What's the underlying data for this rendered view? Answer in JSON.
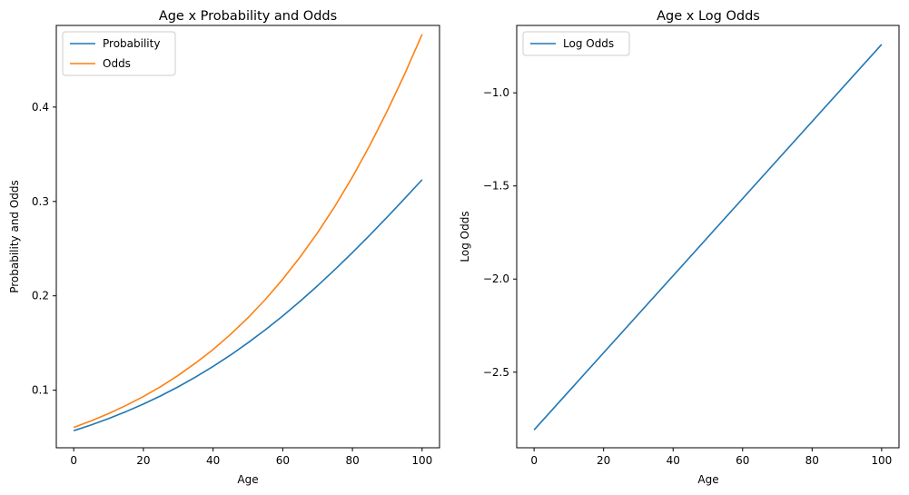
{
  "chart_data": [
    {
      "type": "line",
      "title": "Age x Probability and Odds",
      "xlabel": "Age",
      "ylabel": "Probability and Odds",
      "xlim": [
        -5,
        105
      ],
      "ylim": [
        0.039,
        0.4865
      ],
      "xticks": [
        0,
        20,
        40,
        60,
        80,
        100
      ],
      "xtick_labels": [
        "0",
        "20",
        "40",
        "60",
        "80",
        "100"
      ],
      "yticks": [
        0.1,
        0.2,
        0.3,
        0.4
      ],
      "ytick_labels": [
        "0.1",
        "0.2",
        "0.3",
        "0.4"
      ],
      "legend_position": "top-left",
      "grid": false,
      "x": [
        0,
        5,
        10,
        15,
        20,
        25,
        30,
        35,
        40,
        45,
        50,
        55,
        60,
        65,
        70,
        75,
        80,
        85,
        90,
        95,
        100
      ],
      "series": [
        {
          "name": "Probability",
          "color": "#1f77b4",
          "values": [
            0.0571,
            0.0632,
            0.0699,
            0.0773,
            0.0853,
            0.0941,
            0.1036,
            0.114,
            0.1252,
            0.1372,
            0.1502,
            0.164,
            0.1787,
            0.1943,
            0.2107,
            0.2279,
            0.2458,
            0.2644,
            0.2835,
            0.3031,
            0.323
          ]
        },
        {
          "name": "Odds",
          "color": "#ff7f0e",
          "values": [
            0.0605,
            0.0675,
            0.0752,
            0.0838,
            0.0933,
            0.1039,
            0.1157,
            0.1289,
            0.1431,
            0.1591,
            0.1767,
            0.1961,
            0.2176,
            0.2412,
            0.2669,
            0.2951,
            0.3259,
            0.3595,
            0.3959,
            0.435,
            0.4771
          ]
        }
      ]
    },
    {
      "type": "line",
      "title": "Age x Log Odds",
      "xlabel": "Age",
      "ylabel": "Log Odds",
      "xlim": [
        -5,
        105
      ],
      "ylim": [
        -2.906,
        -0.638
      ],
      "xticks": [
        0,
        20,
        40,
        60,
        80,
        100
      ],
      "xtick_labels": [
        "0",
        "20",
        "40",
        "60",
        "80",
        "100"
      ],
      "yticks": [
        -2.5,
        -2.0,
        -1.5,
        -1.0
      ],
      "ytick_labels": [
        "−2.5",
        "−2.0",
        "−1.5",
        "−1.0"
      ],
      "legend_position": "top-left",
      "grid": false,
      "x": [
        0,
        100
      ],
      "series": [
        {
          "name": "Log Odds",
          "color": "#1f77b4",
          "values": [
            -2.81,
            -0.74
          ]
        }
      ]
    }
  ]
}
